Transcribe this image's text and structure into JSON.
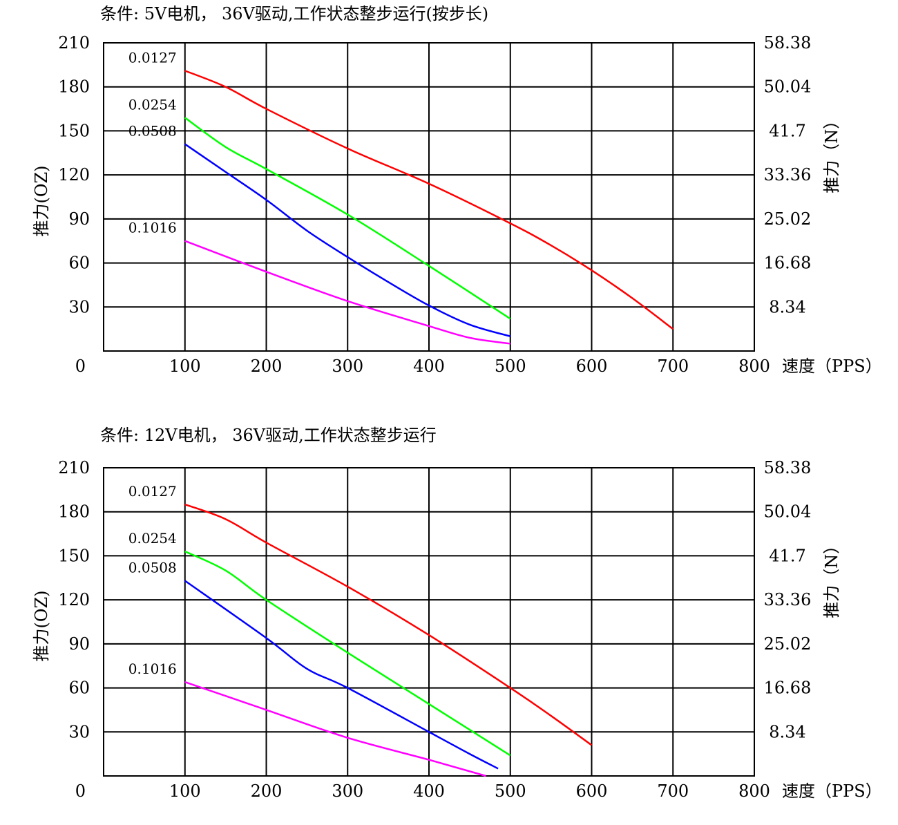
{
  "chart_data": [
    {
      "type": "line",
      "title": "条件: 5V电机， 36V驱动,工作状态整步运行(按步长)",
      "xlabel": "速度（PPS）",
      "ylabel": "推力(OZ)",
      "ylabel_right": "推力（N）",
      "xlim": [
        0,
        800
      ],
      "ylim": [
        0,
        210
      ],
      "x_ticks": [
        0,
        100,
        200,
        300,
        400,
        500,
        600,
        700,
        800
      ],
      "y_ticks": [
        0,
        30,
        60,
        90,
        120,
        150,
        180,
        210
      ],
      "x_tick_labels": [
        "0",
        "100",
        "200",
        "300",
        "400",
        "500",
        "600",
        "700",
        "800"
      ],
      "y_tick_labels": [
        "0",
        "30",
        "60",
        "90",
        "120",
        "150",
        "180",
        "210"
      ],
      "y_right_tick_labels": [
        "",
        "8.34",
        "16.68",
        "25.02",
        "33.36",
        "41.7",
        "50.04",
        "58.38"
      ],
      "grid": true,
      "series": [
        {
          "name": "0.0127",
          "color": "#ff0000",
          "points": [
            [
              100,
              191
            ],
            [
              150,
              180
            ],
            [
              200,
              165
            ],
            [
              300,
              138
            ],
            [
              400,
              114
            ],
            [
              500,
              87
            ],
            [
              550,
              72
            ],
            [
              600,
              55
            ],
            [
              650,
              36
            ],
            [
              700,
              15
            ]
          ]
        },
        {
          "name": "0.0254",
          "color": "#00ff00",
          "points": [
            [
              100,
              159
            ],
            [
              150,
              139
            ],
            [
              200,
              124
            ],
            [
              300,
              93
            ],
            [
              400,
              58
            ],
            [
              500,
              22
            ]
          ]
        },
        {
          "name": "0.0508",
          "color": "#0000ff",
          "points": [
            [
              100,
              141
            ],
            [
              150,
              122
            ],
            [
              200,
              103
            ],
            [
              250,
              82
            ],
            [
              300,
              64
            ],
            [
              350,
              47
            ],
            [
              400,
              31
            ],
            [
              450,
              18
            ],
            [
              500,
              10
            ]
          ]
        },
        {
          "name": "0.1016",
          "color": "#ff00ff",
          "points": [
            [
              100,
              75
            ],
            [
              200,
              54
            ],
            [
              300,
              34
            ],
            [
              400,
              17
            ],
            [
              450,
              9
            ],
            [
              500,
              5
            ]
          ]
        }
      ]
    },
    {
      "type": "line",
      "title": "条件: 12V电机， 36V驱动,工作状态整步运行",
      "xlabel": "速度（PPS）",
      "ylabel": "推力(OZ)",
      "ylabel_right": "推力（N）",
      "xlim": [
        0,
        800
      ],
      "ylim": [
        0,
        210
      ],
      "x_ticks": [
        0,
        100,
        200,
        300,
        400,
        500,
        600,
        700,
        800
      ],
      "y_ticks": [
        0,
        30,
        60,
        90,
        120,
        150,
        180,
        210
      ],
      "x_tick_labels": [
        "0",
        "100",
        "200",
        "300",
        "400",
        "500",
        "600",
        "700",
        "800"
      ],
      "y_tick_labels": [
        "0",
        "30",
        "60",
        "90",
        "120",
        "150",
        "180",
        "210"
      ],
      "y_right_tick_labels": [
        "",
        "8.34",
        "16.68",
        "25.02",
        "33.36",
        "41.7",
        "50.04",
        "58.38"
      ],
      "grid": true,
      "series": [
        {
          "name": "0.0127",
          "color": "#ff0000",
          "points": [
            [
              100,
              185
            ],
            [
              150,
              175
            ],
            [
              200,
              159
            ],
            [
              300,
              129
            ],
            [
              400,
              96
            ],
            [
              500,
              60
            ],
            [
              550,
              41
            ],
            [
              600,
              21
            ]
          ]
        },
        {
          "name": "0.0254",
          "color": "#00ff00",
          "points": [
            [
              100,
              153
            ],
            [
              150,
              140
            ],
            [
              200,
              120
            ],
            [
              300,
              84
            ],
            [
              400,
              49
            ],
            [
              500,
              14
            ]
          ]
        },
        {
          "name": "0.0508",
          "color": "#0000ff",
          "points": [
            [
              100,
              133
            ],
            [
              200,
              94
            ],
            [
              250,
              73
            ],
            [
              300,
              60
            ],
            [
              400,
              30
            ],
            [
              450,
              15
            ],
            [
              485,
              5
            ]
          ]
        },
        {
          "name": "0.1016",
          "color": "#ff00ff",
          "points": [
            [
              100,
              64
            ],
            [
              200,
              45
            ],
            [
              300,
              26
            ],
            [
              400,
              11
            ],
            [
              470,
              0
            ]
          ]
        }
      ]
    }
  ]
}
